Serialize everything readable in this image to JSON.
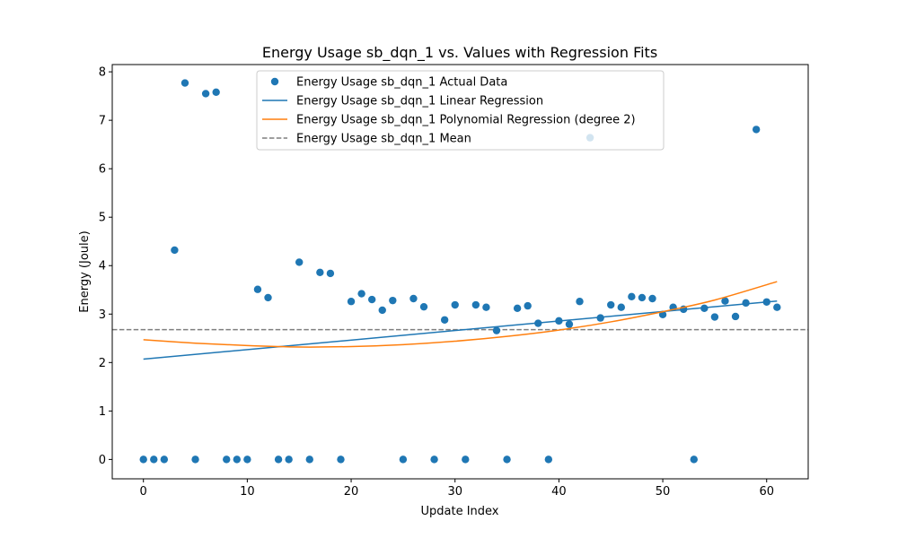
{
  "chart_data": {
    "type": "scatter",
    "title": "Energy Usage sb_dqn_1 vs. Values with Regression Fits",
    "xlabel": "Update Index",
    "ylabel": "Energy (Joule)",
    "xlim": [
      -3,
      64
    ],
    "ylim": [
      -0.4,
      8.15
    ],
    "xticks": [
      0,
      10,
      20,
      30,
      40,
      50,
      60
    ],
    "yticks": [
      0,
      1,
      2,
      3,
      4,
      5,
      6,
      7,
      8
    ],
    "grid": false,
    "legend_position": "top-center",
    "series": [
      {
        "name": "Energy Usage sb_dqn_1 Actual Data",
        "kind": "scatter",
        "color": "#1f77b4",
        "x": [
          0,
          1,
          2,
          3,
          4,
          5,
          6,
          7,
          8,
          9,
          10,
          11,
          12,
          13,
          14,
          15,
          16,
          17,
          18,
          19,
          20,
          21,
          22,
          23,
          24,
          25,
          26,
          27,
          28,
          29,
          30,
          31,
          32,
          33,
          34,
          35,
          36,
          37,
          38,
          39,
          40,
          41,
          42,
          43,
          44,
          45,
          46,
          47,
          48,
          49,
          50,
          51,
          52,
          53,
          54,
          55,
          56,
          57,
          58,
          59,
          60,
          61
        ],
        "y": [
          0,
          0,
          0,
          4.32,
          7.77,
          0,
          7.55,
          7.58,
          0,
          0,
          0,
          3.51,
          3.34,
          0,
          0,
          4.07,
          0,
          3.86,
          3.84,
          0,
          3.26,
          3.42,
          3.3,
          3.08,
          3.28,
          0,
          3.32,
          3.15,
          0,
          2.88,
          3.19,
          0,
          3.19,
          3.14,
          2.66,
          0,
          3.12,
          3.17,
          2.81,
          0,
          2.86,
          2.79,
          3.26,
          6.64,
          2.92,
          3.19,
          3.14,
          3.36,
          3.34,
          3.32,
          2.99,
          3.14,
          3.1,
          0,
          3.12,
          2.94,
          3.27,
          2.95,
          3.23,
          6.81,
          3.25,
          3.14
        ]
      },
      {
        "name": "Energy Usage sb_dqn_1 Linear Regression",
        "kind": "line",
        "color": "#1f77b4",
        "x": [
          0,
          61
        ],
        "y": [
          2.07,
          3.27
        ]
      },
      {
        "name": "Energy Usage sb_dqn_1 Polynomial Regression (degree 2)",
        "kind": "line",
        "color": "#ff7f0e",
        "x": [
          0,
          5,
          10,
          15,
          20,
          25,
          30,
          35,
          40,
          45,
          50,
          55,
          61
        ],
        "y": [
          2.47,
          2.4,
          2.35,
          2.32,
          2.33,
          2.37,
          2.44,
          2.54,
          2.67,
          2.84,
          3.05,
          3.29,
          3.67
        ]
      },
      {
        "name": "Energy Usage sb_dqn_1 Mean",
        "kind": "hline",
        "color": "#7f7f7f",
        "y": 2.68
      }
    ]
  }
}
